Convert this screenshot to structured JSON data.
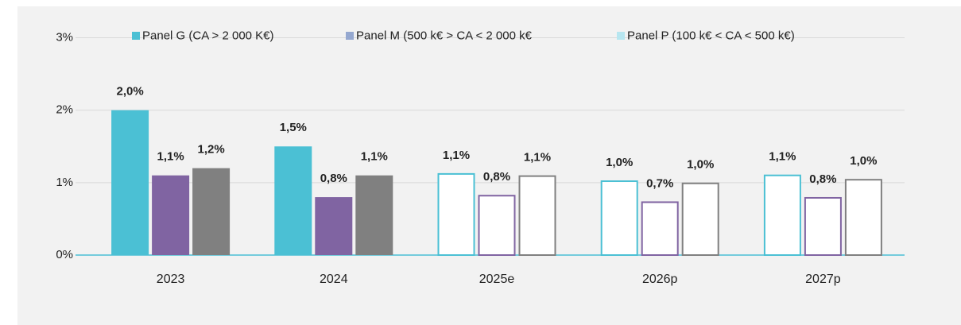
{
  "chart_data": {
    "type": "bar",
    "categories": [
      "2023",
      "2024",
      "2025e",
      "2026p",
      "2027p"
    ],
    "hollow": [
      false,
      false,
      true,
      true,
      true
    ],
    "series": [
      {
        "name": "Panel G (CA > 2 000 K€)",
        "color": "#4bc0d4",
        "legend_color": "#4bc0d4",
        "values": [
          2.0,
          1.5,
          1.12,
          1.02,
          1.1
        ],
        "value_labels": [
          "2,0%",
          "1,5%",
          "1,1%",
          "1,0%",
          "1,1%"
        ]
      },
      {
        "name": "Panel M (500 k€ > CA < 2 000 k€",
        "color": "#8064a2",
        "legend_color": "#95a8d0",
        "values": [
          1.1,
          0.8,
          0.82,
          0.73,
          0.79
        ],
        "value_labels": [
          "1,1%",
          "0,8%",
          "0,8%",
          "0,7%",
          "0,8%"
        ]
      },
      {
        "name": "Panel P (100 k€ < CA < 500 k€)",
        "color": "#808080",
        "legend_color": "#b7e6f0",
        "values": [
          1.2,
          1.1,
          1.09,
          0.99,
          1.04
        ],
        "value_labels": [
          "1,2%",
          "1,1%",
          "1,1%",
          "1,0%",
          "1,0%"
        ]
      }
    ],
    "ylim": [
      0,
      3
    ],
    "yticks": [
      {
        "value": 0,
        "label": "0%"
      },
      {
        "value": 1,
        "label": "1%"
      },
      {
        "value": 2,
        "label": "2%"
      },
      {
        "value": 3,
        "label": "3%"
      }
    ],
    "grid": true
  }
}
